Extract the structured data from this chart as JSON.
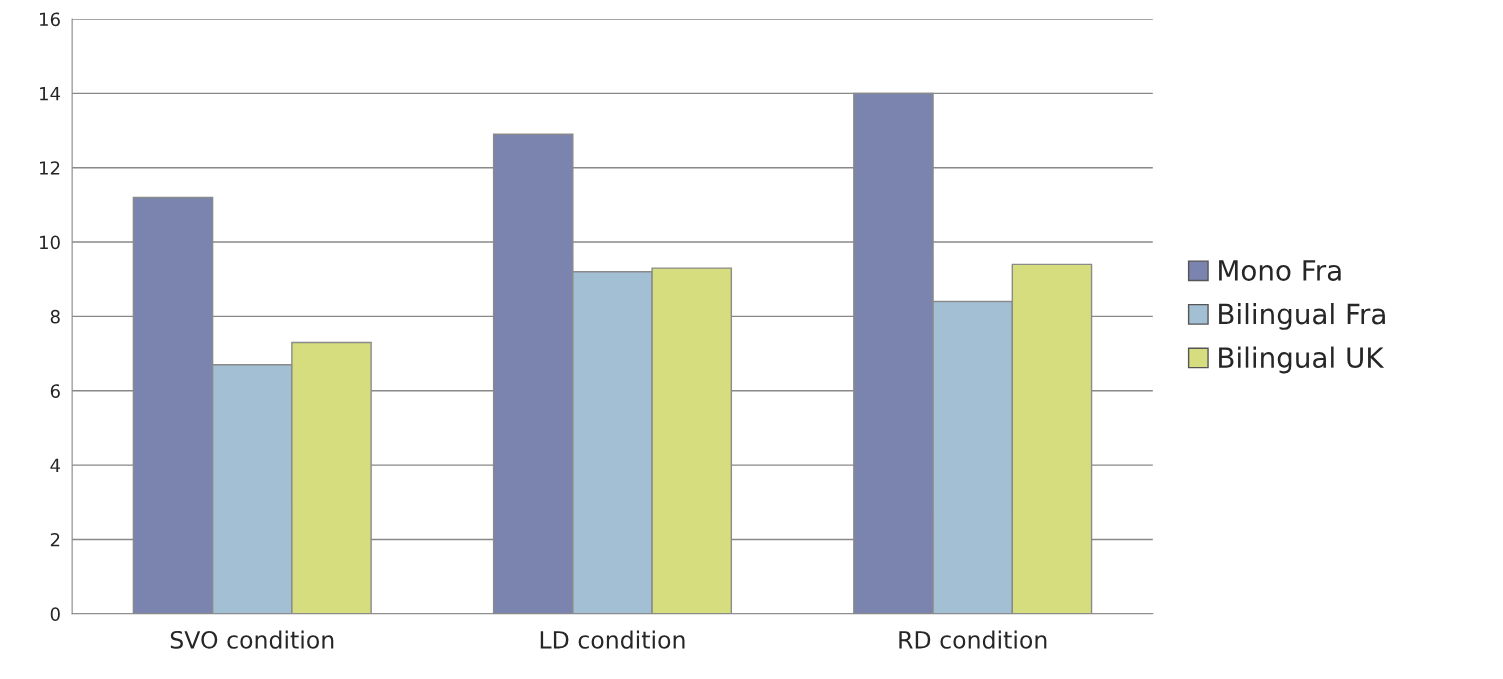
{
  "chart_data": {
    "type": "bar",
    "categories": [
      "SVO condition",
      "LD condition",
      "RD condition"
    ],
    "series": [
      {
        "name": "Mono Fra",
        "color": "#7a84ae",
        "values": [
          11.2,
          12.9,
          14.0
        ]
      },
      {
        "name": "Bilingual Fra",
        "color": "#a3bfd4",
        "values": [
          6.7,
          9.2,
          8.4
        ]
      },
      {
        "name": "Bilingual UK",
        "color": "#d6dd7e",
        "values": [
          7.3,
          9.3,
          9.4
        ]
      }
    ],
    "ylim": [
      0,
      16
    ],
    "yticks": [
      0,
      2,
      4,
      6,
      8,
      10,
      12,
      14,
      16
    ],
    "grid": "y",
    "legend": "right"
  }
}
